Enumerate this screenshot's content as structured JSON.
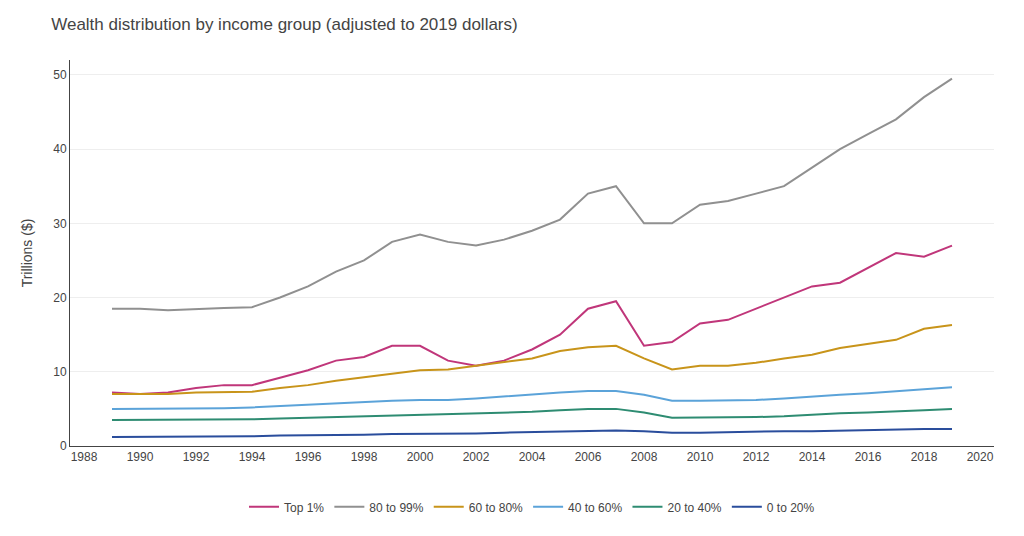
{
  "chart_data": {
    "type": "line",
    "title": "Wealth distribution by income group (adjusted to 2019 dollars)",
    "y_label": "Trillions ($)",
    "x": [
      1989,
      1990,
      1991,
      1992,
      1993,
      1994,
      1995,
      1996,
      1997,
      1998,
      1999,
      2000,
      2001,
      2002,
      2003,
      2004,
      2005,
      2006,
      2007,
      2008,
      2009,
      2010,
      2011,
      2012,
      2013,
      2014,
      2015,
      2016,
      2017,
      2018,
      2019
    ],
    "xlim": [
      1987.5,
      2020.5
    ],
    "xticks": [
      1988,
      1990,
      1992,
      1994,
      1996,
      1998,
      2000,
      2002,
      2004,
      2006,
      2008,
      2010,
      2012,
      2014,
      2016,
      2018,
      2020
    ],
    "ylim": [
      0,
      52
    ],
    "yticks": [
      0,
      10,
      20,
      30,
      40,
      50
    ],
    "grid": true,
    "legend": "bottom",
    "series": [
      {
        "name": "Top 1%",
        "color": "#c0367a",
        "values": [
          7.2,
          7.0,
          7.2,
          7.8,
          8.2,
          8.2,
          9.2,
          10.2,
          11.5,
          12.0,
          13.5,
          13.5,
          11.5,
          10.8,
          11.5,
          13.0,
          15.0,
          18.5,
          19.5,
          13.5,
          14.0,
          16.5,
          17.0,
          18.5,
          20.0,
          21.5,
          22.0,
          24.0,
          26.0,
          25.5,
          27.0
        ]
      },
      {
        "name": "80 to 99%",
        "color": "#909090",
        "values": [
          18.5,
          18.5,
          18.3,
          18.5,
          18.6,
          18.7,
          20.0,
          21.5,
          23.5,
          25.0,
          27.5,
          28.5,
          27.5,
          27.0,
          27.8,
          29.0,
          30.5,
          34.0,
          35.0,
          30.0,
          30.0,
          32.5,
          33.0,
          34.0,
          35.0,
          37.5,
          40.0,
          42.0,
          44.0,
          47.0,
          49.5
        ]
      },
      {
        "name": "60 to 80%",
        "color": "#c8941a",
        "values": [
          7.0,
          7.0,
          7.0,
          7.2,
          7.3,
          7.3,
          7.8,
          8.2,
          8.8,
          9.3,
          9.8,
          10.2,
          10.3,
          10.8,
          11.3,
          11.8,
          12.8,
          13.3,
          13.5,
          11.8,
          10.3,
          10.8,
          10.8,
          11.2,
          11.8,
          12.3,
          13.2,
          13.8,
          14.3,
          15.8,
          16.3
        ]
      },
      {
        "name": "40 to 60%",
        "color": "#5ba3d9",
        "values": [
          5.0,
          5.0,
          5.0,
          5.0,
          5.1,
          5.2,
          5.4,
          5.6,
          5.7,
          5.9,
          6.1,
          6.2,
          6.2,
          6.4,
          6.7,
          6.9,
          7.2,
          7.4,
          7.4,
          6.9,
          6.1,
          6.1,
          6.1,
          6.2,
          6.4,
          6.7,
          6.9,
          7.1,
          7.4,
          7.7,
          7.9
        ]
      },
      {
        "name": "20 to 40%",
        "color": "#2e8c72",
        "values": [
          3.5,
          3.5,
          3.5,
          3.5,
          3.5,
          3.6,
          3.7,
          3.8,
          3.9,
          4.0,
          4.1,
          4.2,
          4.2,
          4.3,
          4.5,
          4.6,
          4.8,
          5.0,
          5.0,
          4.5,
          3.8,
          3.8,
          3.8,
          3.9,
          4.0,
          4.2,
          4.4,
          4.5,
          4.6,
          4.8,
          5.0
        ]
      },
      {
        "name": "0 to 20%",
        "color": "#2a4d9c",
        "values": [
          1.2,
          1.2,
          1.2,
          1.3,
          1.3,
          1.3,
          1.4,
          1.4,
          1.5,
          1.5,
          1.6,
          1.6,
          1.7,
          1.7,
          1.8,
          1.9,
          2.0,
          2.1,
          2.1,
          2.0,
          1.8,
          1.8,
          1.9,
          1.9,
          2.0,
          2.0,
          2.1,
          2.2,
          2.2,
          2.3,
          2.3
        ]
      }
    ]
  }
}
